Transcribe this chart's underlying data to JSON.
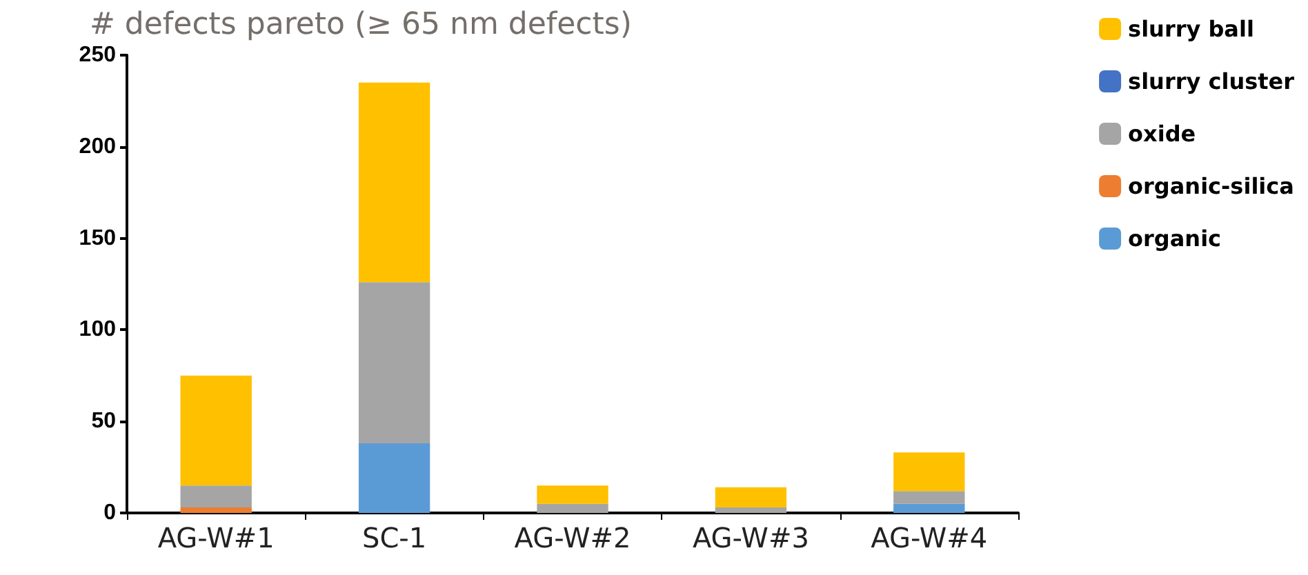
{
  "chart_data": {
    "type": "bar",
    "stacked": true,
    "title": "# defects pareto (≥ 65 nm defects)",
    "categories": [
      "AG-W#1",
      "SC-1",
      "AG-W#2",
      "AG-W#3",
      "AG-W#4"
    ],
    "series": [
      {
        "name": "organic",
        "color": "#5b9bd5",
        "values": [
          0,
          38,
          0,
          0,
          5
        ]
      },
      {
        "name": "organic-silica",
        "color": "#ed7d31",
        "values": [
          3,
          0,
          0,
          0,
          0
        ]
      },
      {
        "name": "oxide",
        "color": "#a5a5a5",
        "values": [
          12,
          88,
          5,
          3,
          7
        ]
      },
      {
        "name": "slurry cluster",
        "color": "#4472c4",
        "values": [
          0,
          0,
          0,
          0,
          0
        ]
      },
      {
        "name": "slurry ball",
        "color": "#ffc000",
        "values": [
          60,
          109,
          10,
          11,
          21
        ]
      }
    ],
    "ylim": [
      0,
      250
    ],
    "yticks": [
      0,
      50,
      100,
      150,
      200,
      250
    ],
    "grid": false,
    "legend": "right"
  }
}
